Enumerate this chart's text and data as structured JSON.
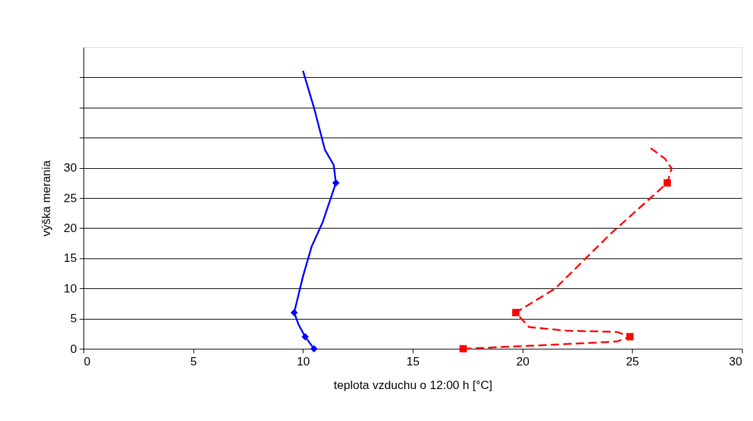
{
  "chart_data": {
    "type": "line",
    "xlabel": "teplota vzduchu o 12:00 h [°C]",
    "ylabel": "výška merania",
    "xlim": [
      0,
      30
    ],
    "xticks": [
      0,
      5,
      10,
      15,
      20,
      25,
      30
    ],
    "ylim": [
      0,
      50
    ],
    "yticks": [
      0,
      5,
      10,
      15,
      20,
      25,
      30,
      {
        "value": 35,
        "label": null
      },
      {
        "value": 40,
        "label": null
      },
      {
        "value": 45,
        "label": null
      }
    ],
    "grid": "y",
    "series": [
      {
        "type": "line",
        "color": "#0000ff",
        "line_style": "solid",
        "marker": "none",
        "x": [
          10.5,
          10.1,
          9.8,
          9.6,
          10.0,
          10.4,
          10.9,
          11.5,
          11.4,
          11.0,
          10.5,
          10.0
        ],
        "values": [
          0,
          2,
          4,
          6,
          12,
          17,
          21,
          27.5,
          30.5,
          33,
          40,
          46.1
        ]
      },
      {
        "type": "scatter",
        "color": "#0000ff",
        "marker": "diamond",
        "x": [
          10.5,
          10.1,
          9.6,
          11.5
        ],
        "values": [
          0,
          2,
          6,
          27.5
        ]
      },
      {
        "type": "line",
        "color": "#ff0000",
        "line_style": "dashed",
        "marker": "none",
        "x": [
          17.3,
          21.0,
          24.3,
          24.9,
          24.3,
          22.0,
          20.3,
          19.7,
          21.5,
          24.0,
          26.6,
          26.8,
          26.5,
          25.8
        ],
        "values": [
          0,
          0.6,
          1.2,
          2,
          2.8,
          3.0,
          3.6,
          6,
          10,
          19,
          27.5,
          29.9,
          31.5,
          33.4
        ]
      },
      {
        "type": "scatter",
        "color": "#ff0000",
        "marker": "square",
        "x": [
          17.3,
          24.9,
          19.7,
          26.6
        ],
        "values": [
          0,
          2,
          6,
          27.5
        ]
      }
    ]
  }
}
